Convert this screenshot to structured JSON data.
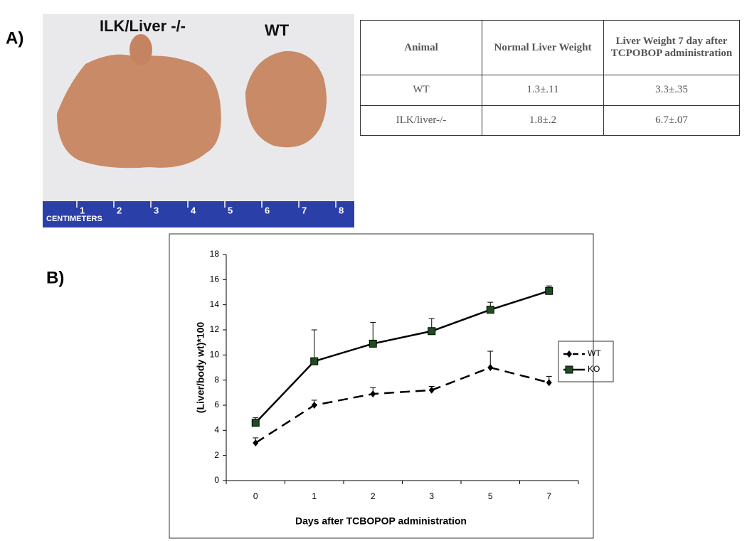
{
  "panels": [
    "A)",
    "B)"
  ],
  "photo": {
    "labels": [
      "ILK/Liver -/-",
      "WT"
    ],
    "ruler_title": "CENTIMETERS",
    "ruler_numbers": [
      "1",
      "2",
      "3",
      "4",
      "5",
      "6",
      "7",
      "8"
    ]
  },
  "table": {
    "header": [
      "Animal",
      "Normal Liver Weight",
      "Liver Weight  7 day after TCPOBOP administration"
    ],
    "rows": [
      [
        "WT",
        "1.3±.11",
        "3.3±.35"
      ],
      [
        "ILK/liver-/-",
        "1.8±.2",
        "6.7±.07"
      ]
    ]
  },
  "chart_data": {
    "type": "line",
    "x_label": "Days after TCBOPOP administration",
    "y_label": "(Liver/body wt)*100",
    "categories": [
      "0",
      "1",
      "2",
      "3",
      "5",
      "7"
    ],
    "series": [
      {
        "name": "WT",
        "color": "#000000",
        "style": "dashed",
        "marker": "diamond",
        "values": [
          3,
          6,
          6.9,
          7.2,
          9,
          7.8
        ],
        "errors": [
          0.4,
          0.4,
          0.5,
          0.3,
          1.3,
          0.5
        ]
      },
      {
        "name": "KO",
        "color": "#000000",
        "style": "solid",
        "marker": "square",
        "values": [
          4.6,
          9.5,
          10.9,
          11.9,
          13.6,
          15.1
        ],
        "errors": [
          0.4,
          2.5,
          1.7,
          1.0,
          0.6,
          0.4
        ]
      }
    ],
    "ylim": [
      0,
      18
    ],
    "yticks": [
      0,
      2,
      4,
      6,
      8,
      10,
      12,
      14,
      16,
      18
    ],
    "legend": "right"
  }
}
